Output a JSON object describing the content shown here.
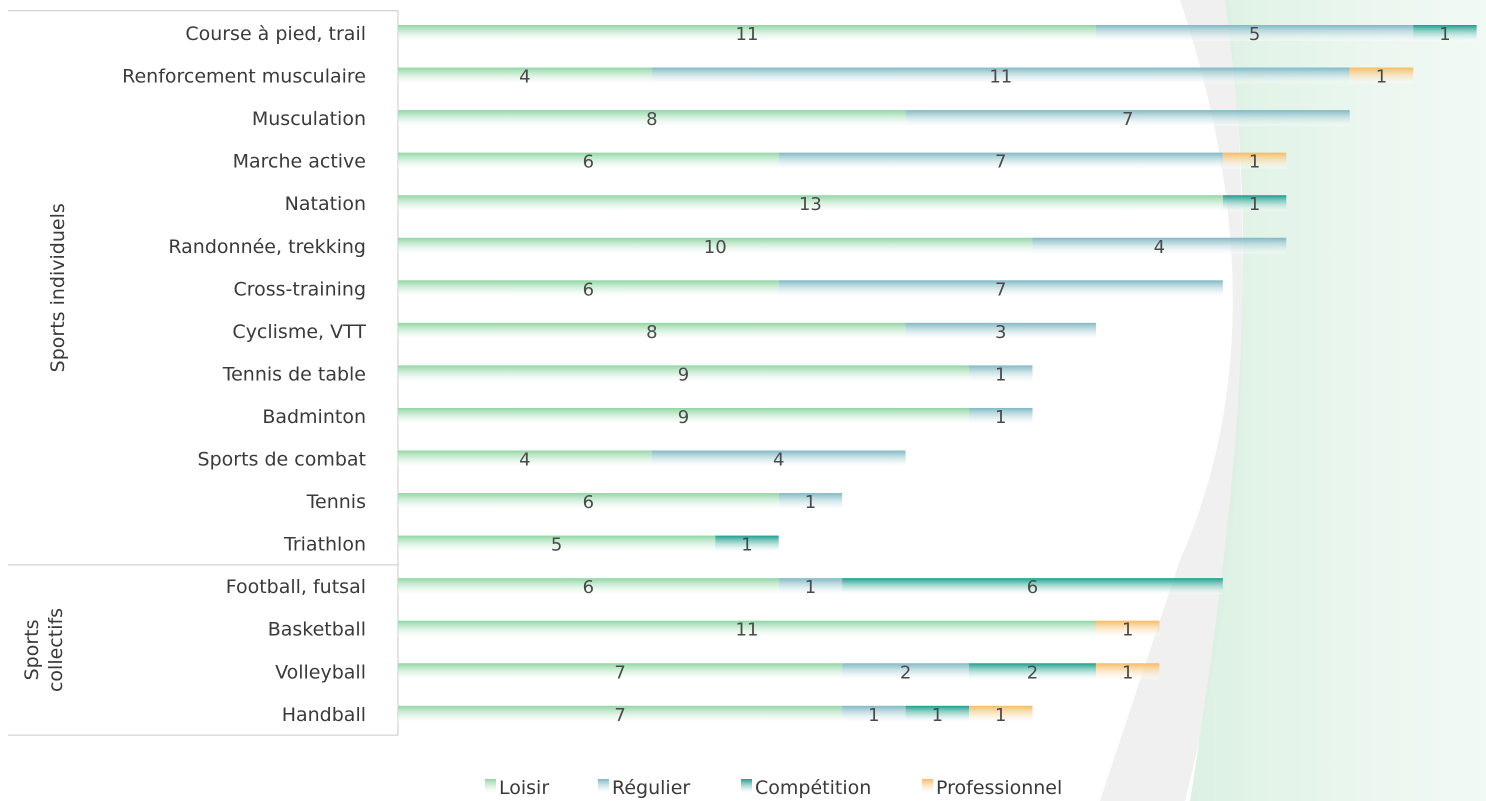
{
  "chart_data": {
    "type": "bar",
    "orientation": "horizontal",
    "stacked": true,
    "title": "",
    "xlabel": "",
    "ylabel": "",
    "xlim": [
      0,
      17
    ],
    "grid": false,
    "legend_position": "bottom",
    "groups": [
      {
        "label": "Sports individuels",
        "categories": [
          "Course à pied, trail",
          "Renforcement musculaire",
          "Musculation",
          "Marche active",
          "Natation",
          "Randonnée, trekking",
          "Cross-training",
          "Cyclisme, VTT",
          "Tennis de table",
          "Badminton",
          "Sports de combat",
          "Tennis",
          "Triathlon"
        ]
      },
      {
        "label": "Sports collectifs",
        "categories": [
          "Football, futsal",
          "Basketball",
          "Volleyball",
          "Handball"
        ]
      }
    ],
    "categories": [
      "Course à pied, trail",
      "Renforcement musculaire",
      "Musculation",
      "Marche active",
      "Natation",
      "Randonnée, trekking",
      "Cross-training",
      "Cyclisme, VTT",
      "Tennis de table",
      "Badminton",
      "Sports de combat",
      "Tennis",
      "Triathlon",
      "Football, futsal",
      "Basketball",
      "Volleyball",
      "Handball"
    ],
    "series": [
      {
        "name": "Loisir",
        "color": "#8fd6a3",
        "values": [
          11,
          4,
          8,
          6,
          13,
          10,
          6,
          8,
          9,
          9,
          4,
          6,
          5,
          6,
          11,
          7,
          7
        ]
      },
      {
        "name": "Régulier",
        "color": "#7fb8c4",
        "values": [
          5,
          11,
          7,
          7,
          0,
          4,
          7,
          3,
          1,
          1,
          4,
          1,
          0,
          1,
          0,
          2,
          1
        ]
      },
      {
        "name": "Compétition",
        "color": "#1a9e8c",
        "values": [
          1,
          0,
          0,
          0,
          1,
          0,
          0,
          0,
          0,
          0,
          0,
          0,
          1,
          6,
          0,
          2,
          1
        ]
      },
      {
        "name": "Professionnel",
        "color": "#f6bb62",
        "values": [
          0,
          1,
          0,
          1,
          0,
          0,
          0,
          0,
          0,
          0,
          0,
          0,
          0,
          0,
          1,
          1,
          1
        ]
      }
    ]
  }
}
